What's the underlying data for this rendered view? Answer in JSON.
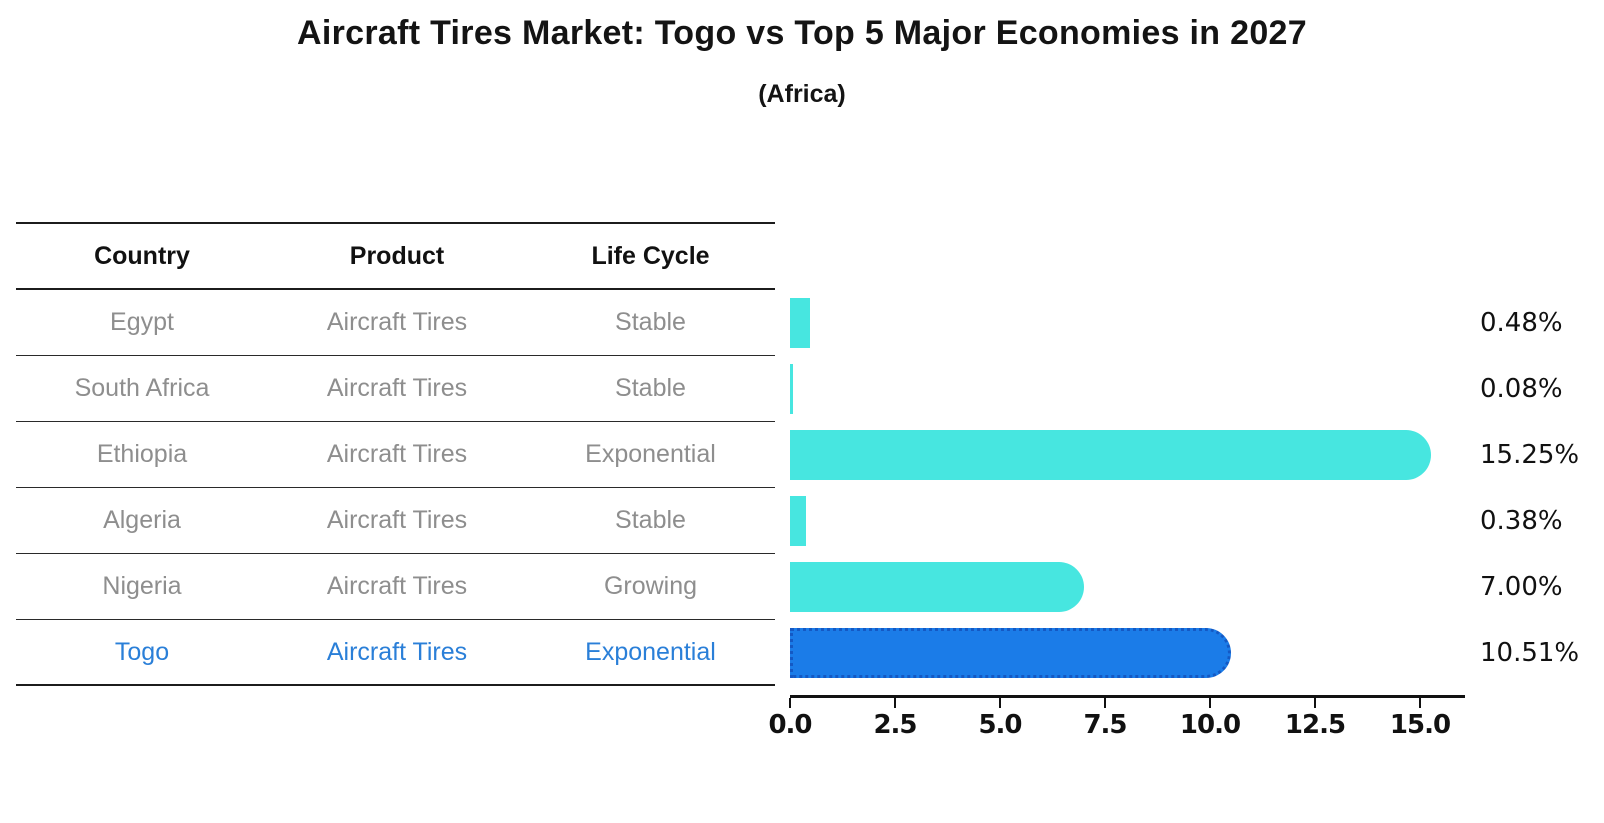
{
  "title": "Aircraft Tires Market: Togo vs Top 5 Major Economies in 2027",
  "subtitle": "(Africa)",
  "table": {
    "headers": [
      "Country",
      "Product",
      "Life Cycle"
    ]
  },
  "chart_data": {
    "type": "bar",
    "orientation": "horizontal",
    "title": "Aircraft Tires Market: Togo vs Top 5 Major Economies in 2027 (Africa)",
    "xlim": [
      0,
      16
    ],
    "x_ticks": [
      "0.0",
      "2.5",
      "5.0",
      "7.5",
      "10.0",
      "12.5",
      "15.0"
    ],
    "grid": false,
    "legend": "none",
    "rows": [
      {
        "country": "Egypt",
        "product": "Aircraft Tires",
        "life_cycle": "Stable",
        "value": 0.48,
        "value_label": "0.48%",
        "highlight": false
      },
      {
        "country": "South Africa",
        "product": "Aircraft Tires",
        "life_cycle": "Stable",
        "value": 0.08,
        "value_label": "0.08%",
        "highlight": false
      },
      {
        "country": "Ethiopia",
        "product": "Aircraft Tires",
        "life_cycle": "Exponential",
        "value": 15.25,
        "value_label": "15.25%",
        "highlight": false
      },
      {
        "country": "Algeria",
        "product": "Aircraft Tires",
        "life_cycle": "Stable",
        "value": 0.38,
        "value_label": "0.38%",
        "highlight": false
      },
      {
        "country": "Nigeria",
        "product": "Aircraft Tires",
        "life_cycle": "Growing",
        "value": 7.0,
        "value_label": "7.00%",
        "highlight": false
      },
      {
        "country": "Togo",
        "product": "Aircraft Tires",
        "life_cycle": "Exponential",
        "value": 10.51,
        "value_label": "10.51%",
        "highlight": true
      }
    ],
    "colors": {
      "bar": "#47e6e0",
      "highlight_bar": "#1b7ce8",
      "highlight_border": "#1459c4",
      "highlight_text": "#2a7fd8",
      "cell_text": "#8e8e8e",
      "header_text": "#111111",
      "axis": "#111111"
    }
  }
}
